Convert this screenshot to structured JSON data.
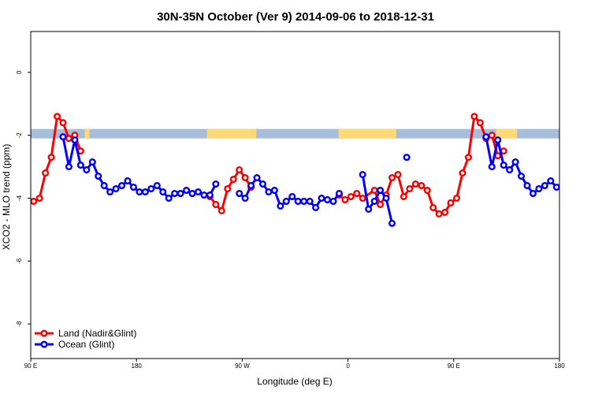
{
  "chart_data": {
    "type": "line",
    "title": "30N-35N October (Ver 9)   2014-09-06 to 2018-12-31",
    "xlabel": "Longitude (deg E)",
    "ylabel": "XCO2 - MLO trend (ppm)",
    "xlim": [
      0,
      450
    ],
    "ylim": [
      -9.1,
      1.3
    ],
    "x_ticks": [
      {
        "value": 0,
        "label": "90 E"
      },
      {
        "value": 90,
        "label": "180"
      },
      {
        "value": 180,
        "label": "90 W"
      },
      {
        "value": 270,
        "label": "0"
      },
      {
        "value": 360,
        "label": "90 E"
      },
      {
        "value": 450,
        "label": "180"
      }
    ],
    "y_ticks": [
      {
        "value": 0,
        "label": "0"
      },
      {
        "value": -2,
        "label": "-2"
      },
      {
        "value": -4,
        "label": "-4"
      },
      {
        "value": -6,
        "label": "-6"
      },
      {
        "value": -8,
        "label": "-8"
      }
    ],
    "land_mask_band": {
      "y_range": [
        -2.1,
        -1.8
      ],
      "ocean_color": "#a6bddb",
      "land_color": "#fed976"
    },
    "land_spans_x": [
      [
        46,
        50
      ],
      [
        150,
        192
      ],
      [
        262,
        311
      ],
      [
        396,
        414
      ]
    ],
    "legend_position": "bottom-left",
    "series": [
      {
        "name": "Land (Nadir&Glint)",
        "color": "#ff0000",
        "segments": [
          [
            [
              2.5,
              -4.1
            ],
            [
              7.5,
              -4.0
            ],
            [
              12.5,
              -3.2
            ],
            [
              17.5,
              -2.7
            ],
            [
              22.5,
              -1.4
            ],
            [
              27.5,
              -1.6
            ],
            [
              32.5,
              -2.1
            ],
            [
              37.5,
              -2.0
            ],
            [
              42.5,
              -2.5
            ]
          ],
          [
            [
              152.5,
              -3.95
            ],
            [
              157.5,
              -4.2
            ],
            [
              162.5,
              -4.4
            ],
            [
              167.5,
              -3.7
            ],
            [
              172.5,
              -3.4
            ],
            [
              177.5,
              -3.1
            ],
            [
              182.5,
              -3.35
            ],
            [
              187.5,
              -3.65
            ]
          ],
          [
            [
              262.5,
              -3.9
            ],
            [
              267.5,
              -4.05
            ],
            [
              272.5,
              -3.95
            ],
            [
              277.5,
              -3.85
            ],
            [
              282.5,
              -4.0
            ],
            [
              292.5,
              -3.75
            ],
            [
              297.5,
              -4.2
            ],
            [
              302.5,
              -3.9
            ],
            [
              307.5,
              -3.35
            ],
            [
              312.5,
              -3.25
            ],
            [
              317.5,
              -3.95
            ],
            [
              322.5,
              -3.7
            ],
            [
              327.5,
              -3.55
            ],
            [
              332.5,
              -3.6
            ],
            [
              337.5,
              -3.75
            ],
            [
              342.5,
              -4.3
            ],
            [
              347.5,
              -4.5
            ],
            [
              352.5,
              -4.45
            ],
            [
              357.5,
              -4.15
            ],
            [
              362.5,
              -4.0
            ],
            [
              367.5,
              -3.2
            ],
            [
              372.5,
              -2.7
            ],
            [
              377.5,
              -1.4
            ],
            [
              382.5,
              -1.6
            ],
            [
              387.5,
              -2.1
            ],
            [
              392.5,
              -2.0
            ],
            [
              397.5,
              -2.65
            ],
            [
              402.5,
              -2.5
            ]
          ]
        ]
      },
      {
        "name": "Ocean (Glint)",
        "color": "#0000ff",
        "segments": [
          [
            [
              27.5,
              -2.05
            ],
            [
              32.5,
              -3.0
            ],
            [
              37.5,
              -2.15
            ],
            [
              42.5,
              -2.95
            ],
            [
              47.5,
              -3.1
            ],
            [
              52.5,
              -2.85
            ],
            [
              57.5,
              -3.3
            ],
            [
              62.5,
              -3.6
            ],
            [
              67.5,
              -3.8
            ],
            [
              72.5,
              -3.7
            ],
            [
              77.5,
              -3.6
            ],
            [
              82.5,
              -3.45
            ],
            [
              87.5,
              -3.65
            ],
            [
              92.5,
              -3.8
            ],
            [
              97.5,
              -3.8
            ],
            [
              102.5,
              -3.7
            ],
            [
              107.5,
              -3.6
            ],
            [
              112.5,
              -3.8
            ],
            [
              117.5,
              -4.0
            ],
            [
              122.5,
              -3.85
            ],
            [
              127.5,
              -3.85
            ],
            [
              132.5,
              -3.75
            ],
            [
              137.5,
              -3.85
            ],
            [
              142.5,
              -3.8
            ],
            [
              147.5,
              -3.9
            ],
            [
              152.5,
              -3.9
            ],
            [
              157.5,
              -3.55
            ]
          ],
          [
            [
              177.5,
              -3.85
            ],
            [
              182.5,
              -4.0
            ],
            [
              187.5,
              -3.6
            ],
            [
              192.5,
              -3.35
            ],
            [
              197.5,
              -3.55
            ],
            [
              202.5,
              -3.8
            ],
            [
              207.5,
              -3.75
            ],
            [
              212.5,
              -4.25
            ],
            [
              217.5,
              -4.1
            ],
            [
              222.5,
              -3.95
            ],
            [
              227.5,
              -4.1
            ],
            [
              232.5,
              -4.1
            ],
            [
              237.5,
              -4.1
            ],
            [
              242.5,
              -4.3
            ],
            [
              247.5,
              -4.0
            ],
            [
              252.5,
              -4.05
            ],
            [
              257.5,
              -4.1
            ],
            [
              262.5,
              -3.85
            ]
          ],
          [
            [
              282.5,
              -3.25
            ],
            [
              287.5,
              -4.35
            ],
            [
              292.5,
              -4.1
            ],
            [
              297.5,
              -3.75
            ],
            [
              302.5,
              -4.0
            ],
            [
              307.5,
              -4.8
            ]
          ],
          [
            [
              320,
              -2.7
            ]
          ],
          [
            [
              387.5,
              -2.05
            ],
            [
              392.5,
              -3.0
            ],
            [
              397.5,
              -2.15
            ],
            [
              402.5,
              -2.95
            ],
            [
              407.5,
              -3.1
            ],
            [
              412.5,
              -2.85
            ],
            [
              417.5,
              -3.3
            ],
            [
              422.5,
              -3.6
            ],
            [
              427.5,
              -3.85
            ],
            [
              432.5,
              -3.7
            ],
            [
              437.5,
              -3.6
            ],
            [
              442.5,
              -3.45
            ],
            [
              447.5,
              -3.65
            ]
          ]
        ]
      }
    ]
  }
}
